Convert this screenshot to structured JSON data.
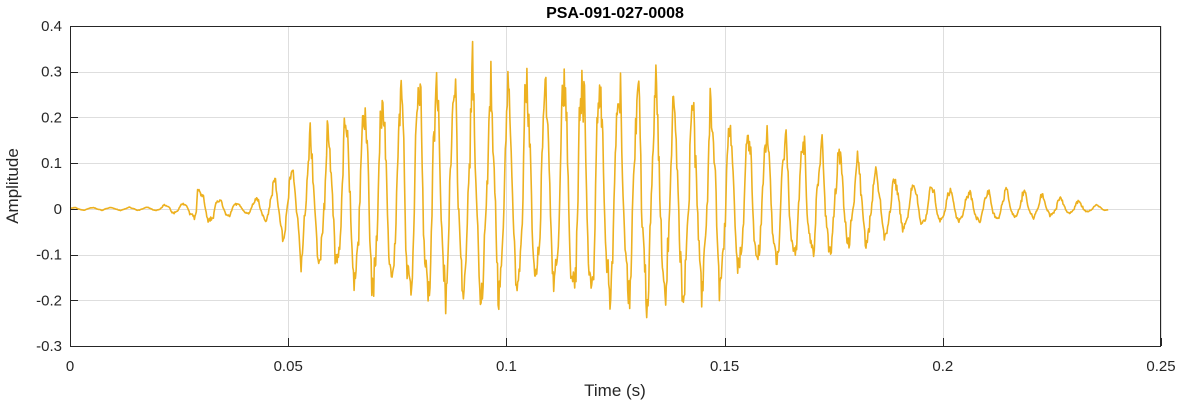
{
  "chart_data": {
    "type": "line",
    "title": "PSA-091-027-0008",
    "xlabel": "Time (s)",
    "ylabel": "Amplitude",
    "xlim": [
      0,
      0.25
    ],
    "ylim": [
      -0.3,
      0.4
    ],
    "xticks": [
      0,
      0.05,
      0.1,
      0.15,
      0.2,
      0.25
    ],
    "xtick_labels": [
      "0",
      "0.05",
      "0.1",
      "0.15",
      "0.2",
      "0.25"
    ],
    "yticks": [
      -0.3,
      -0.2,
      -0.1,
      0,
      0.1,
      0.2,
      0.3,
      0.4
    ],
    "ytick_labels": [
      "-0.3",
      "-0.2",
      "-0.1",
      "0",
      "0.1",
      "0.2",
      "0.3",
      "0.4"
    ],
    "grid": true,
    "line_color": "#EDB120",
    "series": [
      {
        "x": [
          0,
          0.01,
          0.02,
          0.022,
          0.025,
          0.028,
          0.029,
          0.03,
          0.035,
          0.04,
          0.043,
          0.045,
          0.046,
          0.048,
          0.05,
          0.055,
          0.06,
          0.065,
          0.07,
          0.075,
          0.08,
          0.085,
          0.09,
          0.095,
          0.1,
          0.105,
          0.11,
          0.115,
          0.12,
          0.125,
          0.13,
          0.135,
          0.14,
          0.145,
          0.15,
          0.155,
          0.16,
          0.165,
          0.17,
          0.175,
          0.18,
          0.185,
          0.19,
          0.195,
          0.2,
          0.205,
          0.21,
          0.215,
          0.22,
          0.225,
          0.23,
          0.235,
          0.238
        ],
        "upper": [
          0.003,
          0.003,
          0.004,
          0.01,
          0.012,
          0.015,
          0.09,
          0.04,
          0.02,
          0.01,
          0.03,
          0.04,
          0.07,
          0.06,
          0.09,
          0.15,
          0.19,
          0.24,
          0.25,
          0.28,
          0.3,
          0.3,
          0.3,
          0.3,
          0.3,
          0.3,
          0.3,
          0.31,
          0.31,
          0.3,
          0.3,
          0.29,
          0.28,
          0.26,
          0.2,
          0.19,
          0.18,
          0.17,
          0.16,
          0.15,
          0.12,
          0.09,
          0.07,
          0.06,
          0.05,
          0.04,
          0.04,
          0.05,
          0.04,
          0.03,
          0.02,
          0.01,
          0.005
        ],
        "lower": [
          -0.003,
          -0.003,
          -0.004,
          -0.01,
          -0.012,
          -0.015,
          -0.05,
          -0.04,
          -0.02,
          -0.01,
          -0.02,
          -0.03,
          -0.04,
          -0.05,
          -0.1,
          -0.12,
          -0.14,
          -0.17,
          -0.19,
          -0.2,
          -0.22,
          -0.2,
          -0.21,
          -0.23,
          -0.2,
          -0.19,
          -0.19,
          -0.2,
          -0.21,
          -0.23,
          -0.22,
          -0.23,
          -0.21,
          -0.2,
          -0.18,
          -0.14,
          -0.13,
          -0.12,
          -0.11,
          -0.1,
          -0.08,
          -0.07,
          -0.05,
          -0.04,
          -0.03,
          -0.03,
          -0.03,
          -0.02,
          -0.02,
          -0.015,
          -0.01,
          -0.005,
          -0.003
        ]
      }
    ]
  }
}
